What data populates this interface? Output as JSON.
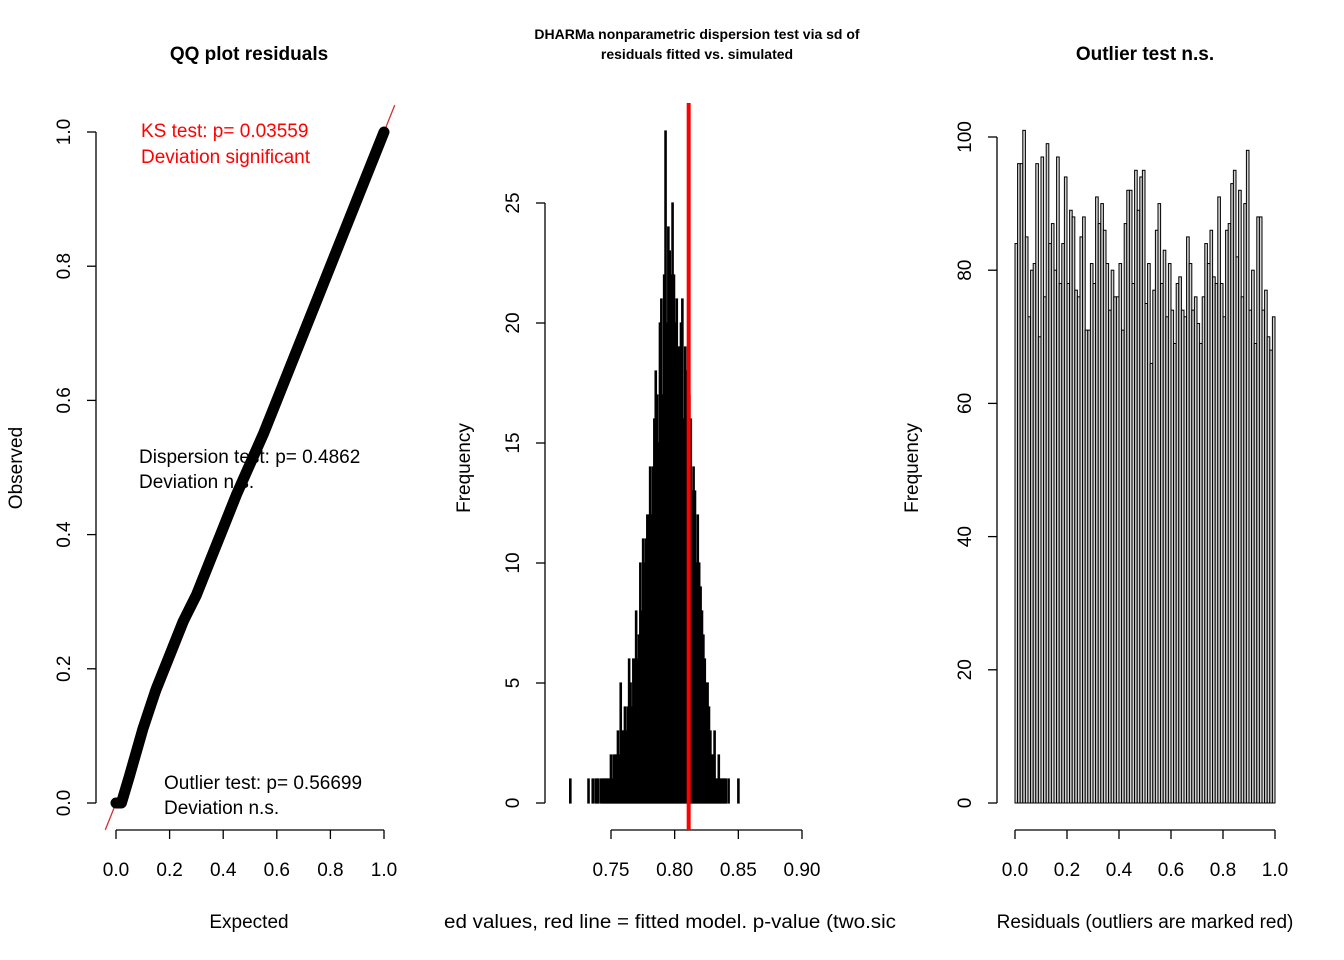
{
  "chart_data": [
    {
      "type": "scatter",
      "title": "QQ plot residuals",
      "xlabel": "Expected",
      "ylabel": "Observed",
      "xlim": [
        -0.04,
        1.04
      ],
      "ylim": [
        -0.04,
        1.04
      ],
      "xticks": [
        "0.0",
        "0.2",
        "0.4",
        "0.6",
        "0.8",
        "1.0"
      ],
      "yticks": [
        "0.0",
        "0.2",
        "0.4",
        "0.6",
        "0.8",
        "1.0"
      ],
      "reference_line": "y = x",
      "reference_color": "#cc3333",
      "point_color": "#000000",
      "qq_points": [
        [
          0.0,
          0.0
        ],
        [
          0.02,
          0.0
        ],
        [
          0.05,
          0.04
        ],
        [
          0.1,
          0.11
        ],
        [
          0.15,
          0.17
        ],
        [
          0.2,
          0.22
        ],
        [
          0.25,
          0.27
        ],
        [
          0.3,
          0.31
        ],
        [
          0.35,
          0.36
        ],
        [
          0.4,
          0.41
        ],
        [
          0.45,
          0.46
        ],
        [
          0.5,
          0.505
        ],
        [
          0.55,
          0.55
        ],
        [
          0.6,
          0.6
        ],
        [
          0.65,
          0.65
        ],
        [
          0.7,
          0.7
        ],
        [
          0.75,
          0.75
        ],
        [
          0.8,
          0.8
        ],
        [
          0.85,
          0.85
        ],
        [
          0.9,
          0.9
        ],
        [
          0.95,
          0.95
        ],
        [
          1.0,
          1.0
        ]
      ],
      "annotations": {
        "ks_line1": "KS test: p= 0.03559",
        "ks_line2": "Deviation  significant",
        "ks_color": "#ff0000",
        "disp_line1": "Dispersion test: p= 0.4862",
        "disp_line2": "Deviation  n.s.",
        "out_line1": "Outlier test: p= 0.56699",
        "out_line2": "Deviation  n.s."
      }
    },
    {
      "type": "bar",
      "title_line1": "DHARMa nonparametric dispersion test via sd of",
      "title_line2": "residuals fitted vs. simulated",
      "xlabel": "ed values, red line = fitted model. p-value (two.sic",
      "ylabel": "Frequency",
      "xlim": [
        0.7,
        0.925
      ],
      "ylim": [
        0,
        30
      ],
      "xticks": [
        0.75,
        0.8,
        0.85,
        0.9
      ],
      "xtick_labels": [
        "0.75",
        "0.80",
        "0.85",
        "0.90"
      ],
      "yticks": [
        0,
        5,
        10,
        15,
        20,
        25
      ],
      "ytick_labels": [
        "0",
        "5",
        "10",
        "15",
        "20",
        "25"
      ],
      "bin_start": 0.7175,
      "bin_width": 0.0011,
      "counts": [
        1,
        0,
        0,
        0,
        0,
        0,
        0,
        0,
        0,
        0,
        0,
        0,
        0,
        1,
        0,
        0,
        1,
        0,
        1,
        1,
        1,
        0,
        1,
        1,
        1,
        1,
        1,
        1,
        1,
        2,
        1,
        2,
        2,
        2,
        3,
        2,
        5,
        3,
        3,
        4,
        3,
        4,
        6,
        5,
        4,
        6,
        6,
        8,
        6,
        7,
        10,
        8,
        11,
        10,
        11,
        12,
        12,
        14,
        12,
        14,
        16,
        18,
        17,
        15,
        20,
        21,
        17,
        22,
        28,
        20,
        24,
        23,
        22,
        25,
        22,
        20,
        21,
        19,
        19,
        20,
        21,
        16,
        19,
        18,
        15,
        17,
        16,
        13,
        14,
        13,
        10,
        12,
        10,
        9,
        8,
        7,
        6,
        5,
        5,
        4,
        3,
        2,
        2,
        3,
        1,
        1,
        2,
        1,
        1,
        1,
        1,
        1,
        0,
        1,
        0,
        0,
        0,
        0,
        0,
        0,
        1
      ],
      "fill_color": "#000000",
      "fitted_value": 0.811,
      "fitted_color": "#ff0000"
    },
    {
      "type": "bar",
      "title": "Outlier test n.s.",
      "xlabel": "Residuals (outliers are marked red)",
      "ylabel": "Frequency",
      "xlim": [
        -0.04,
        1.04
      ],
      "ylim": [
        0,
        104
      ],
      "xticks": [
        0,
        0.2,
        0.4,
        0.6,
        0.8,
        1.0
      ],
      "xtick_labels": [
        "0.0",
        "0.2",
        "0.4",
        "0.6",
        "0.8",
        "1.0"
      ],
      "yticks": [
        0,
        20,
        40,
        60,
        80,
        100
      ],
      "ytick_labels": [
        "0",
        "20",
        "40",
        "60",
        "80",
        "100"
      ],
      "bin_width": 0.02,
      "counts": [
        84,
        96,
        96,
        101,
        85,
        73,
        80,
        81,
        96,
        70,
        97,
        76,
        99,
        84,
        87,
        80,
        97,
        78,
        84,
        94,
        78,
        89,
        88,
        77,
        76,
        85,
        88,
        71,
        71,
        81,
        78,
        91,
        87,
        90,
        86,
        81,
        74,
        80,
        76,
        76,
        81,
        71,
        87,
        92,
        92,
        78,
        95,
        89,
        94,
        95,
        75,
        81,
        66,
        77,
        86,
        90,
        78,
        83,
        73,
        81,
        74,
        69,
        78,
        79,
        74,
        73,
        85,
        81,
        74,
        76,
        72,
        69,
        76,
        84,
        81,
        86,
        79,
        78,
        91,
        78,
        73,
        86,
        87,
        93,
        95,
        82,
        92,
        76,
        90,
        98,
        74,
        80,
        69,
        88,
        88,
        74,
        77,
        70,
        68,
        73
      ],
      "fill_color": "#d3d3d3"
    }
  ]
}
